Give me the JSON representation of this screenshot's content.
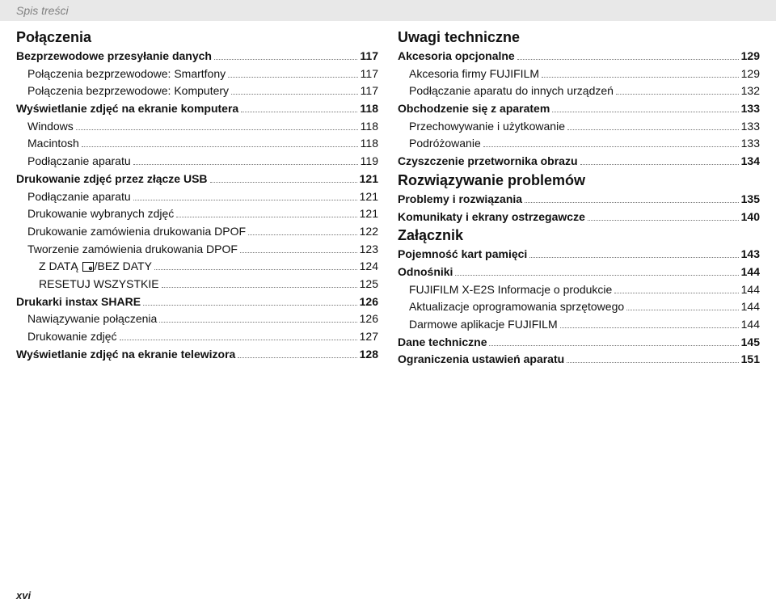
{
  "header": "Spis treści",
  "pageNumber": "xvi",
  "columns": {
    "left": [
      {
        "type": "section",
        "text": "Połączenia"
      },
      {
        "label": "Bezprzewodowe przesyłanie danych",
        "page": "117",
        "bold": true,
        "indent": 0
      },
      {
        "label": "Połączenia bezprzewodowe: Smartfony",
        "page": "117",
        "indent": 1
      },
      {
        "label": "Połączenia bezprzewodowe: Komputery",
        "page": "117",
        "indent": 1
      },
      {
        "label": "Wyświetlanie zdjęć na ekranie komputera",
        "page": "118",
        "bold": true,
        "indent": 0
      },
      {
        "label": "Windows",
        "page": "118",
        "indent": 1
      },
      {
        "label": "Macintosh",
        "page": "118",
        "indent": 1
      },
      {
        "label": "Podłączanie aparatu",
        "page": "119",
        "indent": 1
      },
      {
        "label": "Drukowanie zdjęć przez złącze USB",
        "page": "121",
        "bold": true,
        "indent": 0
      },
      {
        "label": "Podłączanie aparatu",
        "page": "121",
        "indent": 1
      },
      {
        "label": "Drukowanie wybranych zdjęć",
        "page": "121",
        "indent": 1
      },
      {
        "label": "Drukowanie zamówienia drukowania DPOF",
        "page": "122",
        "indent": 1
      },
      {
        "label": "Tworzenie zamówienia drukowania DPOF",
        "page": "123",
        "indent": 1
      },
      {
        "label": "Z DATĄ ⧉/BEZ DATY",
        "page": "124",
        "indent": 2,
        "hasIcon": true
      },
      {
        "label": "RESETUJ WSZYSTKIE",
        "page": "125",
        "indent": 2
      },
      {
        "label": "Drukarki instax SHARE",
        "page": "126",
        "bold": true,
        "indent": 0
      },
      {
        "label": "Nawiązywanie połączenia",
        "page": "126",
        "indent": 1
      },
      {
        "label": "Drukowanie zdjęć",
        "page": "127",
        "indent": 1
      },
      {
        "label": "Wyświetlanie zdjęć na ekranie telewizora",
        "page": "128",
        "bold": true,
        "indent": 0
      }
    ],
    "right": [
      {
        "type": "section",
        "text": "Uwagi techniczne"
      },
      {
        "label": "Akcesoria opcjonalne",
        "page": "129",
        "bold": true,
        "indent": 0
      },
      {
        "label": "Akcesoria firmy FUJIFILM",
        "page": "129",
        "indent": 1
      },
      {
        "label": "Podłączanie aparatu do innych urządzeń",
        "page": "132",
        "indent": 1
      },
      {
        "label": "Obchodzenie się z aparatem",
        "page": "133",
        "bold": true,
        "indent": 0
      },
      {
        "label": "Przechowywanie i użytkowanie",
        "page": "133",
        "indent": 1
      },
      {
        "label": "Podróżowanie",
        "page": "133",
        "indent": 1
      },
      {
        "label": "Czyszczenie przetwornika obrazu",
        "page": "134",
        "bold": true,
        "indent": 0
      },
      {
        "type": "section",
        "text": "Rozwiązywanie problemów"
      },
      {
        "label": "Problemy i rozwiązania",
        "page": "135",
        "bold": true,
        "indent": 0
      },
      {
        "label": "Komunikaty i ekrany ostrzegawcze",
        "page": "140",
        "bold": true,
        "indent": 0
      },
      {
        "type": "section",
        "text": "Załącznik"
      },
      {
        "label": "Pojemność kart pamięci",
        "page": "143",
        "bold": true,
        "indent": 0
      },
      {
        "label": "Odnośniki",
        "page": "144",
        "bold": true,
        "indent": 0
      },
      {
        "label": "FUJIFILM X-E2S Informacje o produkcie",
        "page": "144",
        "indent": 1
      },
      {
        "label": "Aktualizacje oprogramowania sprzętowego",
        "page": "144",
        "indent": 1
      },
      {
        "label": "Darmowe aplikacje FUJIFILM",
        "page": "144",
        "indent": 1
      },
      {
        "label": "Dane techniczne",
        "page": "145",
        "bold": true,
        "indent": 0
      },
      {
        "label": "Ograniczenia ustawień aparatu",
        "page": "151",
        "bold": true,
        "indent": 0
      }
    ]
  }
}
